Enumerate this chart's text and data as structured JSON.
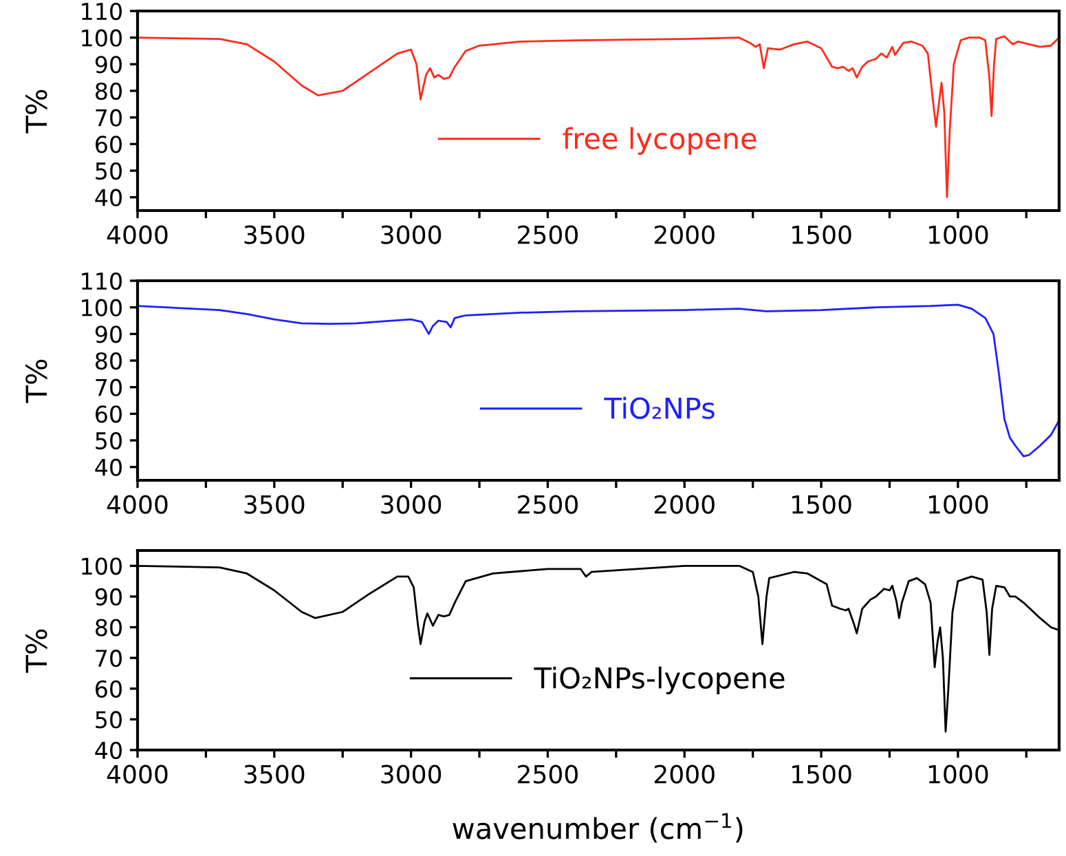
{
  "chart_data": [
    {
      "type": "line",
      "ylabel": "T%",
      "legend": "bottom",
      "xlim": [
        4000,
        630
      ],
      "ylim": [
        35,
        110
      ],
      "xticks": [
        4000,
        {
          "value": 3750,
          "label": null
        },
        3500,
        {
          "value": 3250,
          "label": null
        },
        3000,
        {
          "value": 2750,
          "label": null
        },
        2500,
        {
          "value": 2250,
          "label": null
        },
        2000,
        {
          "value": 1750,
          "label": null
        },
        1500,
        {
          "value": 1250,
          "label": null
        },
        1000,
        {
          "value": 750,
          "label": null
        }
      ],
      "yticks": [
        40,
        50,
        60,
        70,
        80,
        90,
        100,
        110
      ],
      "series": [
        {
          "name": "free lycopene",
          "color": "#ff2a1a",
          "x": [
            4000,
            3700,
            3600,
            3500,
            3400,
            3340,
            3250,
            3150,
            3050,
            3000,
            2980,
            2965,
            2945,
            2930,
            2915,
            2900,
            2880,
            2860,
            2840,
            2800,
            2750,
            2600,
            2400,
            2000,
            1800,
            1760,
            1740,
            1725,
            1710,
            1695,
            1650,
            1600,
            1550,
            1500,
            1460,
            1440,
            1420,
            1400,
            1385,
            1370,
            1350,
            1330,
            1300,
            1280,
            1260,
            1240,
            1230,
            1200,
            1170,
            1130,
            1110,
            1090,
            1080,
            1070,
            1060,
            1050,
            1040,
            1030,
            1015,
            990,
            960,
            920,
            900,
            885,
            877,
            868,
            860,
            830,
            810,
            800,
            780,
            740,
            700,
            660,
            630
          ],
          "values": [
            100,
            99.5,
            97.5,
            91,
            82,
            78.3,
            80,
            87,
            94,
            95.5,
            90,
            76.8,
            86,
            88.5,
            85,
            86,
            84.5,
            85,
            89,
            95,
            97,
            98.5,
            99,
            99.5,
            100,
            98,
            96.5,
            97.5,
            88.5,
            96,
            95.5,
            97.5,
            98.5,
            96,
            89,
            88.5,
            89,
            87.5,
            88.5,
            85,
            89,
            91,
            92,
            94,
            92.5,
            96.5,
            93.5,
            98,
            98.5,
            97,
            94,
            75,
            66.5,
            75,
            83,
            72,
            40,
            65,
            90,
            99,
            100,
            100,
            99,
            85,
            70.5,
            90,
            99.5,
            100.5,
            98.5,
            97.5,
            98.5,
            97.5,
            96.5,
            97,
            100
          ]
        }
      ]
    },
    {
      "type": "line",
      "ylabel": "T%",
      "legend": "bottom",
      "xlim": [
        4000,
        630
      ],
      "ylim": [
        35,
        110
      ],
      "xticks": [
        4000,
        {
          "value": 3750,
          "label": null
        },
        3500,
        {
          "value": 3250,
          "label": null
        },
        3000,
        {
          "value": 2750,
          "label": null
        },
        2500,
        {
          "value": 2250,
          "label": null
        },
        2000,
        {
          "value": 1750,
          "label": null
        },
        1500,
        {
          "value": 1250,
          "label": null
        },
        1000,
        {
          "value": 750,
          "label": null
        }
      ],
      "yticks": [
        40,
        50,
        60,
        70,
        80,
        90,
        100,
        110
      ],
      "series": [
        {
          "name": "TiO₂NPs",
          "color": "#1f1fff",
          "x": [
            4000,
            3800,
            3700,
            3600,
            3500,
            3400,
            3300,
            3200,
            3100,
            3000,
            2960,
            2935,
            2920,
            2900,
            2870,
            2855,
            2840,
            2800,
            2600,
            2400,
            2000,
            1800,
            1700,
            1500,
            1300,
            1100,
            1000,
            950,
            900,
            870,
            850,
            830,
            810,
            790,
            760,
            740,
            700,
            660,
            630
          ],
          "values": [
            100.5,
            99.5,
            99,
            97.5,
            95.5,
            94,
            93.8,
            94,
            94.8,
            95.5,
            94.5,
            90,
            93,
            95,
            94.5,
            92.5,
            96,
            97,
            98,
            98.5,
            99,
            99.5,
            98.5,
            99,
            100,
            100.5,
            101,
            99.5,
            96,
            90,
            75,
            58,
            51,
            48,
            44,
            44.5,
            48,
            52,
            57.5
          ]
        }
      ]
    },
    {
      "type": "line",
      "ylabel": "T%",
      "xlabel": "wavenumber (cm$^{−1}$)",
      "legend": "bottom",
      "xlim": [
        4000,
        630
      ],
      "ylim": [
        40,
        105
      ],
      "xticks": [
        4000,
        {
          "value": 3750,
          "label": null
        },
        3500,
        {
          "value": 3250,
          "label": null
        },
        3000,
        {
          "value": 2750,
          "label": null
        },
        2500,
        {
          "value": 2250,
          "label": null
        },
        2000,
        {
          "value": 1750,
          "label": null
        },
        1500,
        {
          "value": 1250,
          "label": null
        },
        1000,
        {
          "value": 750,
          "label": null
        }
      ],
      "yticks": [
        40,
        50,
        60,
        70,
        80,
        90,
        100
      ],
      "series": [
        {
          "name": "TiO₂NPs-lycopene",
          "color": "#000000",
          "x": [
            4000,
            3700,
            3600,
            3500,
            3400,
            3350,
            3250,
            3150,
            3050,
            3010,
            2990,
            2975,
            2965,
            2950,
            2940,
            2920,
            2900,
            2880,
            2860,
            2840,
            2800,
            2700,
            2500,
            2380,
            2360,
            2340,
            2000,
            1800,
            1750,
            1730,
            1715,
            1700,
            1690,
            1600,
            1550,
            1480,
            1460,
            1430,
            1410,
            1400,
            1380,
            1370,
            1350,
            1320,
            1300,
            1270,
            1250,
            1240,
            1225,
            1215,
            1205,
            1180,
            1150,
            1120,
            1100,
            1085,
            1075,
            1065,
            1055,
            1045,
            1035,
            1020,
            1000,
            950,
            910,
            895,
            885,
            875,
            860,
            830,
            810,
            790,
            760,
            700,
            660,
            630
          ],
          "values": [
            100,
            99.5,
            97.5,
            92,
            85,
            83,
            85,
            91,
            96.5,
            96.5,
            93,
            81,
            74.5,
            82,
            84.5,
            80.5,
            84,
            83.5,
            84,
            88,
            95,
            97.5,
            99,
            99,
            96.5,
            98,
            100,
            100,
            98,
            90,
            74.5,
            90,
            96,
            98,
            97.5,
            94,
            87,
            86,
            85.5,
            86,
            81,
            78,
            86,
            89,
            90,
            92.5,
            92,
            93.5,
            88.5,
            83,
            88,
            95,
            96,
            94,
            88,
            67,
            75,
            80,
            70,
            46,
            60,
            85,
            95,
            96.5,
            95.5,
            85,
            71,
            86,
            93.5,
            93,
            90,
            90,
            88,
            83,
            80,
            79
          ]
        }
      ]
    }
  ]
}
